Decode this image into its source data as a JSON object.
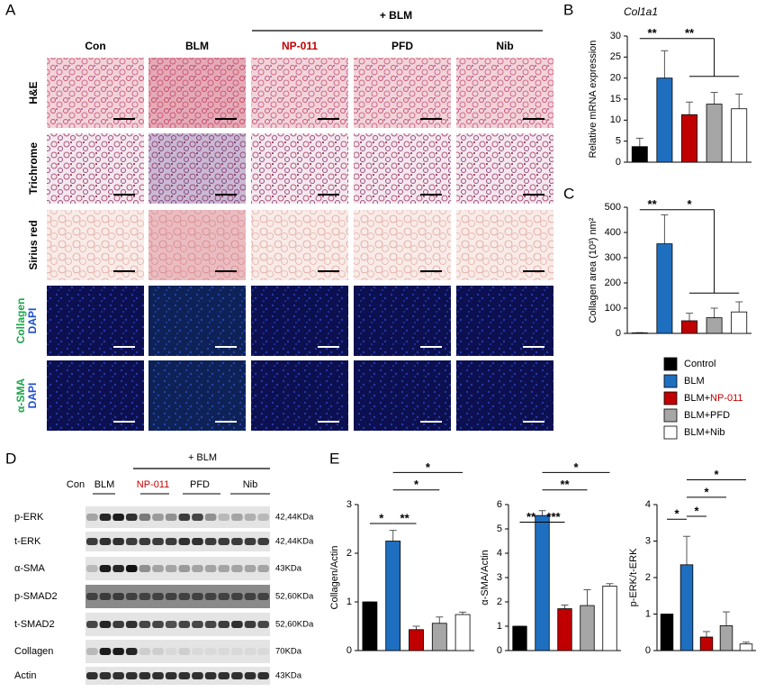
{
  "panel_labels": [
    "A",
    "B",
    "C",
    "D",
    "E"
  ],
  "panel_a": {
    "group": "+ BLM",
    "columns": [
      "Con",
      "BLM",
      "NP-011",
      "PFD",
      "Nib"
    ],
    "rows": [
      {
        "label": "H&E"
      },
      {
        "label": "Trichrome"
      },
      {
        "label": "Sirius red"
      },
      {
        "label": "Collagen",
        "sublabel": "DAPI"
      },
      {
        "label": "α-SMA",
        "sublabel": "DAPI"
      }
    ]
  },
  "panel_d": {
    "group": "+ BLM",
    "lanes": [
      "Con",
      "BLM",
      "NP-011",
      "PFD",
      "Nib"
    ],
    "rows": [
      {
        "protein": "p-ERK",
        "size": "42,44KDa"
      },
      {
        "protein": "t-ERK",
        "size": "42,44KDa"
      },
      {
        "protein": "α-SMA",
        "size": "43KDa"
      },
      {
        "protein": "p-SMAD2",
        "size": "52,60KDa"
      },
      {
        "protein": "t-SMAD2",
        "size": "52,60KDa"
      },
      {
        "protein": "Collagen",
        "size": "70KDa"
      },
      {
        "protein": "Actin",
        "size": "43KDa"
      }
    ]
  },
  "legend": {
    "entries": [
      {
        "text": "Control"
      },
      {
        "text": "BLM"
      },
      {
        "text": "BLM+",
        "highlight": "NP-011"
      },
      {
        "text": "BLM+PFD"
      },
      {
        "text": "BLM+Nib"
      }
    ]
  },
  "chart_data": [
    {
      "type": "bar",
      "title": "Col1a1",
      "y_label": "Relative mRNA expression",
      "categories": [
        null,
        null,
        null,
        null,
        null
      ],
      "values": [
        3.7,
        20,
        11.3,
        13.8,
        12.7
      ],
      "errors": [
        2,
        6.5,
        3,
        2.8,
        3.5
      ],
      "colors": [
        "#000000",
        "#1f6fc1",
        "#c00000",
        "#a6a6a6",
        "#ffffff"
      ],
      "ylim": [
        0,
        30
      ],
      "yticks": [
        0,
        5,
        10,
        15,
        20,
        25,
        30
      ],
      "significance": [
        "**",
        "**"
      ]
    },
    {
      "type": "bar",
      "y_label": "Collagen area (10³) nm²",
      "categories": [
        null,
        null,
        null,
        null,
        null
      ],
      "values": [
        2,
        355,
        50,
        62,
        85
      ],
      "errors": [
        1,
        115,
        30,
        38,
        40
      ],
      "colors": [
        "#000000",
        "#1f6fc1",
        "#c00000",
        "#a6a6a6",
        "#ffffff"
      ],
      "ylim": [
        0,
        500
      ],
      "yticks": [
        0,
        100,
        200,
        300,
        400,
        500
      ],
      "significance": [
        "**",
        "*"
      ]
    },
    {
      "type": "bar",
      "y_label": "Collagen/Actin",
      "categories": [
        null,
        null,
        null,
        null,
        null
      ],
      "values": [
        1,
        2.25,
        0.43,
        0.56,
        0.74
      ],
      "errors": [
        0,
        0.22,
        0.07,
        0.13,
        0.05
      ],
      "colors": [
        "#000000",
        "#1f6fc1",
        "#c00000",
        "#a6a6a6",
        "#ffffff"
      ],
      "ylim": [
        0,
        3
      ],
      "yticks": [
        0,
        1,
        2,
        3
      ],
      "significance": [
        "*",
        "**",
        "*",
        "*"
      ]
    },
    {
      "type": "bar",
      "y_label": "α-SMA/Actin",
      "categories": [
        null,
        null,
        null,
        null,
        null
      ],
      "values": [
        1,
        5.55,
        1.72,
        1.85,
        2.65
      ],
      "errors": [
        0,
        0.2,
        0.15,
        0.65,
        0.1
      ],
      "colors": [
        "#000000",
        "#1f6fc1",
        "#c00000",
        "#a6a6a6",
        "#ffffff"
      ],
      "ylim": [
        0,
        6
      ],
      "yticks": [
        0,
        1,
        2,
        3,
        4,
        5,
        6
      ],
      "significance": [
        "**",
        "***",
        "**",
        "*"
      ]
    },
    {
      "type": "bar",
      "y_label": "p-ERK/t-ERK",
      "categories": [
        null,
        null,
        null,
        null,
        null
      ],
      "values": [
        1,
        2.35,
        0.37,
        0.68,
        0.18
      ],
      "errors": [
        0,
        0.78,
        0.15,
        0.38,
        0.05
      ],
      "colors": [
        "#000000",
        "#1f6fc1",
        "#c00000",
        "#a6a6a6",
        "#ffffff"
      ],
      "ylim": [
        0,
        4
      ],
      "yticks": [
        0,
        1,
        2,
        3,
        4
      ],
      "significance": [
        "*",
        "*",
        "*",
        "*"
      ]
    }
  ]
}
